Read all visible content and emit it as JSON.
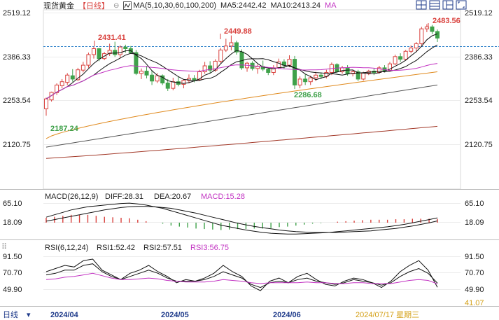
{
  "colors": {
    "up": "#d9413d",
    "down": "#3fa14a",
    "ma5": "#111111",
    "ma10": "#111111",
    "ma30": "#c233c2",
    "ma60": "#e08a1e",
    "ma100": "#555555",
    "ma200": "#a33a2a",
    "dashed": "#2a7fc9",
    "grid": "#e6e6e6",
    "text": "#222222",
    "date": "#1e3a8a",
    "date_hl": "#d4a017"
  },
  "header": {
    "instrument": "现货黄金",
    "period": "【日线】",
    "period_icon": "circle-minus-icon",
    "ma_label": "MA(5,10,30,60,100,200)",
    "ma5": "MA5:2442.42",
    "ma10": "MA10:2413.24",
    "ma_extra": "MA",
    "toolbar_icons": [
      "grid-icon",
      "split-icon",
      "layout-icon",
      "expand-icon"
    ]
  },
  "price_axis": {
    "left": [
      "2519.12",
      "2386.33",
      "2253.54",
      "2120.75"
    ],
    "right": [
      "2519.12",
      "2386.33",
      "2253.54",
      "2120.75"
    ]
  },
  "annotations": {
    "high_2431": "2431.41",
    "high_2449": "2449.88",
    "high_2483": "2483.56",
    "low_2187": "2187.24",
    "low_2286": "2286.68"
  },
  "macd": {
    "label": "MACD(26,12,9)",
    "diff": "DIFF:28.31",
    "dea": "DEA:20.67",
    "macd": "MACD:15.28",
    "left_ticks": [
      "65.10",
      "18.09"
    ],
    "right_ticks": [
      "65.10",
      "18.09"
    ]
  },
  "rsi": {
    "label": "RSI(6,12,24)",
    "rsi1": "RSI1:52.42",
    "rsi2": "RSI2:57.51",
    "rsi3": "RSI3:56.75",
    "left_ticks": [
      "91.50",
      "70.70",
      "49.90"
    ],
    "right_ticks": [
      "91.50",
      "70.70",
      "49.90",
      "41.07"
    ]
  },
  "footer": {
    "period": "日线",
    "dates": [
      "2024/04",
      "2024/05",
      "2024/06"
    ],
    "current_date": "2024/07/17 星期三"
  },
  "chart_data": {
    "type": "candlestick",
    "ylim": [
      2080,
      2540
    ],
    "dates_start": "2024-04-01",
    "candles": [
      [
        2228,
        2262,
        2207,
        2258
      ],
      [
        2255,
        2280,
        2250,
        2278
      ],
      [
        2277,
        2305,
        2270,
        2300
      ],
      [
        2298,
        2318,
        2290,
        2310
      ],
      [
        2308,
        2336,
        2300,
        2330
      ],
      [
        2328,
        2348,
        2310,
        2318
      ],
      [
        2316,
        2352,
        2312,
        2346
      ],
      [
        2345,
        2370,
        2338,
        2360
      ],
      [
        2360,
        2398,
        2352,
        2392
      ],
      [
        2392,
        2416,
        2380,
        2410
      ],
      [
        2410,
        2412,
        2372,
        2380
      ],
      [
        2380,
        2400,
        2375,
        2395
      ],
      [
        2395,
        2425,
        2388,
        2405
      ],
      [
        2405,
        2431,
        2385,
        2392
      ],
      [
        2392,
        2420,
        2382,
        2415
      ],
      [
        2415,
        2422,
        2398,
        2410
      ],
      [
        2410,
        2418,
        2394,
        2398
      ],
      [
        2398,
        2406,
        2330,
        2335
      ],
      [
        2335,
        2350,
        2318,
        2342
      ],
      [
        2342,
        2358,
        2320,
        2330
      ],
      [
        2330,
        2345,
        2300,
        2312
      ],
      [
        2312,
        2336,
        2306,
        2328
      ],
      [
        2328,
        2332,
        2300,
        2306
      ],
      [
        2306,
        2318,
        2282,
        2290
      ],
      [
        2290,
        2322,
        2284,
        2310
      ],
      [
        2310,
        2326,
        2296,
        2302
      ],
      [
        2302,
        2318,
        2290,
        2314
      ],
      [
        2314,
        2332,
        2305,
        2320
      ],
      [
        2320,
        2330,
        2308,
        2316
      ],
      [
        2316,
        2346,
        2312,
        2340
      ],
      [
        2340,
        2370,
        2334,
        2358
      ],
      [
        2358,
        2372,
        2336,
        2345
      ],
      [
        2345,
        2378,
        2340,
        2372
      ],
      [
        2372,
        2412,
        2366,
        2406
      ],
      [
        2406,
        2440,
        2400,
        2418
      ],
      [
        2418,
        2450,
        2405,
        2428
      ],
      [
        2428,
        2434,
        2392,
        2400
      ],
      [
        2400,
        2408,
        2346,
        2352
      ],
      [
        2352,
        2370,
        2340,
        2366
      ],
      [
        2366,
        2372,
        2344,
        2350
      ],
      [
        2350,
        2362,
        2334,
        2356
      ],
      [
        2356,
        2374,
        2342,
        2348
      ],
      [
        2348,
        2354,
        2330,
        2338
      ],
      [
        2338,
        2360,
        2330,
        2352
      ],
      [
        2352,
        2380,
        2348,
        2370
      ],
      [
        2370,
        2378,
        2350,
        2360
      ],
      [
        2360,
        2390,
        2354,
        2378
      ],
      [
        2378,
        2388,
        2288,
        2300
      ],
      [
        2300,
        2326,
        2290,
        2318
      ],
      [
        2318,
        2332,
        2300,
        2310
      ],
      [
        2310,
        2328,
        2300,
        2322
      ],
      [
        2322,
        2340,
        2312,
        2330
      ],
      [
        2330,
        2338,
        2318,
        2326
      ],
      [
        2326,
        2346,
        2320,
        2338
      ],
      [
        2338,
        2368,
        2330,
        2362
      ],
      [
        2362,
        2366,
        2336,
        2340
      ],
      [
        2340,
        2358,
        2334,
        2352
      ],
      [
        2352,
        2360,
        2328,
        2334
      ],
      [
        2334,
        2346,
        2326,
        2340
      ],
      [
        2340,
        2346,
        2312,
        2318
      ],
      [
        2318,
        2340,
        2314,
        2336
      ],
      [
        2336,
        2346,
        2330,
        2342
      ],
      [
        2342,
        2350,
        2330,
        2338
      ],
      [
        2338,
        2358,
        2334,
        2352
      ],
      [
        2352,
        2360,
        2338,
        2344
      ],
      [
        2344,
        2370,
        2340,
        2364
      ],
      [
        2364,
        2392,
        2360,
        2386
      ],
      [
        2386,
        2396,
        2370,
        2378
      ],
      [
        2378,
        2406,
        2374,
        2402
      ],
      [
        2402,
        2420,
        2396,
        2412
      ],
      [
        2412,
        2430,
        2400,
        2425
      ],
      [
        2425,
        2476,
        2420,
        2470
      ],
      [
        2470,
        2484,
        2460,
        2476
      ],
      [
        2476,
        2482,
        2454,
        2462
      ],
      [
        2462,
        2468,
        2430,
        2442
      ]
    ],
    "ma_values": {
      "MA5": 2442.42,
      "MA10": 2413.24
    },
    "macd_series": {
      "diff": [
        30,
        36,
        42,
        48,
        52,
        56,
        58,
        60,
        62,
        64,
        65,
        63,
        60,
        56,
        52,
        46,
        40,
        34,
        28,
        22,
        16,
        10,
        6,
        2,
        -2,
        -5,
        -8,
        -10,
        -11,
        -12,
        -12,
        -11,
        -10,
        -9,
        -8,
        -6,
        -4,
        -2,
        0,
        2,
        4,
        6,
        9,
        12,
        16,
        20,
        24,
        28.31
      ],
      "dea": [
        20,
        24,
        28,
        32,
        36,
        40,
        44,
        48,
        51,
        54,
        56,
        57,
        57,
        56,
        54,
        52,
        48,
        44,
        40,
        35,
        30,
        25,
        20,
        15,
        11,
        7,
        4,
        1,
        -2,
        -4,
        -6,
        -7,
        -8,
        -8,
        -8,
        -8,
        -7,
        -6,
        -5,
        -4,
        -2,
        0,
        2,
        5,
        8,
        12,
        16,
        20.67
      ]
    },
    "rsi_series": {
      "rsi1": [
        72,
        76,
        80,
        78,
        86,
        88,
        74,
        68,
        62,
        70,
        74,
        80,
        72,
        66,
        58,
        62,
        60,
        64,
        70,
        80,
        72,
        66,
        54,
        48,
        60,
        64,
        58,
        66,
        70,
        62,
        56,
        54,
        60,
        64,
        62,
        58,
        52,
        60,
        72,
        80,
        86,
        74,
        52.42
      ],
      "rsi2": [
        68,
        70,
        74,
        74,
        80,
        82,
        72,
        66,
        62,
        66,
        70,
        74,
        70,
        64,
        60,
        60,
        60,
        62,
        66,
        72,
        68,
        64,
        56,
        52,
        58,
        60,
        58,
        62,
        64,
        60,
        58,
        56,
        58,
        62,
        60,
        58,
        55,
        58,
        66,
        72,
        76,
        70,
        57.51
      ],
      "rsi3": [
        62,
        63,
        65,
        66,
        68,
        70,
        67,
        64,
        62,
        62,
        63,
        64,
        63,
        61,
        60,
        59,
        59,
        59,
        60,
        62,
        61,
        60,
        58,
        57,
        58,
        58,
        58,
        58,
        59,
        58,
        58,
        57,
        57,
        58,
        58,
        57,
        57,
        57,
        59,
        61,
        62,
        61,
        56.75
      ]
    }
  }
}
